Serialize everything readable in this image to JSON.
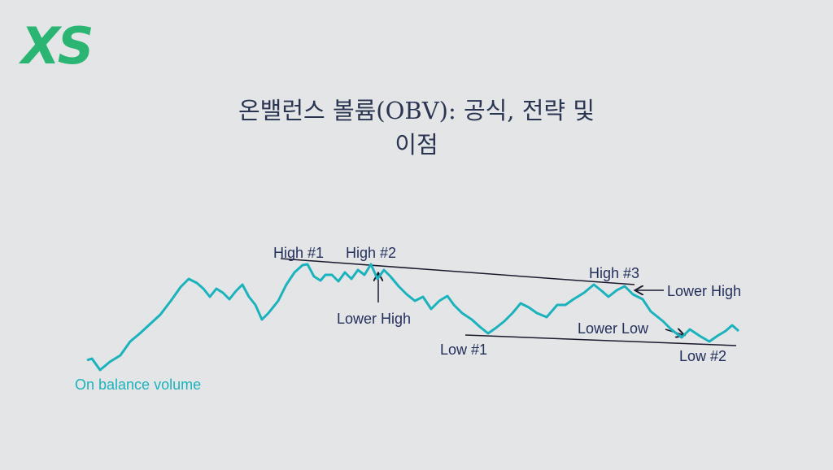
{
  "logo": "XS",
  "title": {
    "line1": "온밸런스 볼륨(OBV): 공식, 전략 및",
    "line2": "이점"
  },
  "annotations": {
    "high1": "High #1",
    "high2": "High #2",
    "high3": "High #3",
    "lower_high_1": "Lower High",
    "lower_high_2": "Lower High",
    "lower_low": "Lower Low",
    "low1": "Low #1",
    "low2": "Low #2",
    "line_label": "On balance volume"
  }
}
